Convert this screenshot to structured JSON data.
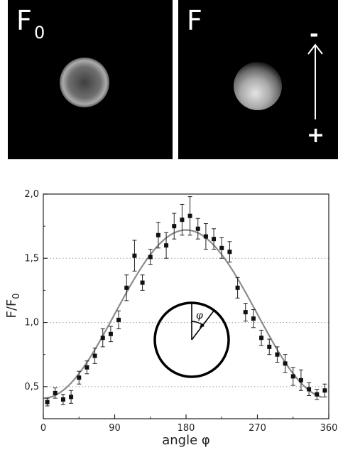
{
  "panels": [
    {
      "label_main": "F",
      "label_sub": "0"
    },
    {
      "label_main": "F",
      "label_sub": ""
    }
  ],
  "arrow": {
    "top_sign": "-",
    "bottom_sign": "+"
  },
  "chart_data": {
    "type": "scatter",
    "title": "",
    "xlabel": "angle φ",
    "ylabel": "F/F0",
    "ylabel_main": "F/F",
    "ylabel_sub": "0",
    "xlim": [
      0,
      360
    ],
    "ylim": [
      0.25,
      2.0
    ],
    "xticks": [
      0,
      90,
      180,
      270,
      360
    ],
    "xtick_labels": [
      "0",
      "90",
      "180",
      "270",
      "360"
    ],
    "yticks": [
      0.5,
      1.0,
      1.5,
      2.0
    ],
    "ytick_labels": [
      "0,5",
      "1,0",
      "1,5",
      "2,0"
    ],
    "grid": "dotted horizontal at 0.5, 1.0, 1.5",
    "series": [
      {
        "x": [
          5,
          15,
          25,
          35,
          45,
          55,
          65,
          75,
          85,
          95,
          105,
          115,
          125,
          135,
          145,
          155,
          165,
          175,
          185,
          195,
          205,
          215,
          225,
          235,
          245,
          255,
          265,
          275,
          285,
          295,
          305,
          315,
          325,
          335,
          345,
          355
        ],
        "y": [
          0.38,
          0.45,
          0.4,
          0.42,
          0.57,
          0.65,
          0.74,
          0.88,
          0.91,
          1.02,
          1.27,
          1.52,
          1.31,
          1.51,
          1.68,
          1.6,
          1.75,
          1.8,
          1.83,
          1.73,
          1.67,
          1.65,
          1.58,
          1.55,
          1.27,
          1.08,
          1.03,
          0.88,
          0.81,
          0.75,
          0.68,
          0.58,
          0.55,
          0.48,
          0.44,
          0.47
        ],
        "err": [
          0.03,
          0.04,
          0.04,
          0.05,
          0.05,
          0.05,
          0.06,
          0.07,
          0.06,
          0.07,
          0.1,
          0.12,
          0.06,
          0.06,
          0.1,
          0.1,
          0.1,
          0.12,
          0.15,
          0.08,
          0.1,
          0.08,
          0.08,
          0.08,
          0.08,
          0.07,
          0.07,
          0.06,
          0.06,
          0.06,
          0.07,
          0.07,
          0.08,
          0.05,
          0.04,
          0.05
        ]
      },
      {
        "fit": "A + B*(1-cos(x))/2",
        "A": 0.41,
        "B": 1.31
      }
    ],
    "inset": {
      "symbol": "φ"
    },
    "colors": {
      "markers": "#111111",
      "fit_line": "#8c8c8c",
      "grid": "#9a9a9a"
    }
  }
}
